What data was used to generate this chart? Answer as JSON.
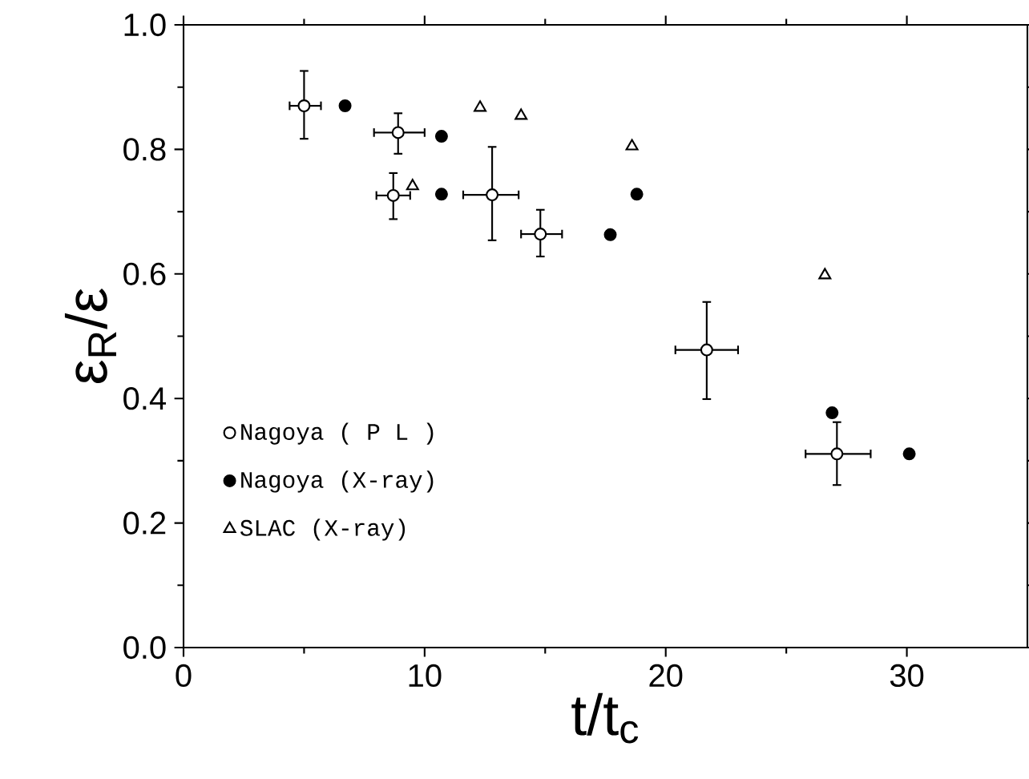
{
  "chart_data": {
    "type": "scatter",
    "xlabel": "t/t$_{c}$",
    "ylabel": "ε$_{R}$/ε",
    "xlim": [
      0,
      35
    ],
    "ylim": [
      0,
      1
    ],
    "xticks": [
      0,
      10,
      20,
      30
    ],
    "yticks": [
      {
        "value": 0,
        "label": "0.0"
      },
      0.2,
      0.4,
      0.6,
      0.8,
      {
        "value": 1,
        "label": "1.0"
      }
    ],
    "legend": "bottom left",
    "grid": false,
    "series": [
      {
        "name": "Nagoya ( P L )",
        "color": "#ffffff",
        "marker": "circle",
        "x": [
          5.0,
          8.9,
          8.7,
          12.8,
          14.8,
          21.7,
          27.1
        ],
        "values": [
          0.87,
          0.827,
          0.726,
          0.727,
          0.664,
          0.478,
          0.311
        ],
        "errors": [
          [
            0.817,
            0.926
          ],
          [
            0.793,
            0.858
          ],
          [
            0.688,
            0.762
          ],
          [
            0.654,
            0.804
          ],
          [
            0.628,
            0.703
          ],
          [
            0.399,
            0.555
          ],
          [
            0.261,
            0.362
          ]
        ],
        "xerrors": [
          [
            4.4,
            5.7
          ],
          [
            7.9,
            10.0
          ],
          [
            8.0,
            9.4
          ],
          [
            11.6,
            13.9
          ],
          [
            14.0,
            15.7
          ],
          [
            20.4,
            23.0
          ],
          [
            25.8,
            28.5
          ]
        ]
      },
      {
        "name": "Nagoya (X-ray)",
        "color": "#000000",
        "marker": "circle",
        "x": [
          6.7,
          10.7,
          10.7,
          17.7,
          18.8,
          26.9,
          30.1
        ],
        "values": [
          0.87,
          0.821,
          0.728,
          0.663,
          0.728,
          0.377,
          0.311
        ]
      },
      {
        "name": "SLAC  (X-ray)",
        "color": "#ffffff",
        "marker": "triangle",
        "x": [
          9.5,
          12.3,
          14.0,
          18.6,
          26.6
        ],
        "values": [
          0.741,
          0.867,
          0.854,
          0.805,
          0.598
        ]
      }
    ]
  }
}
